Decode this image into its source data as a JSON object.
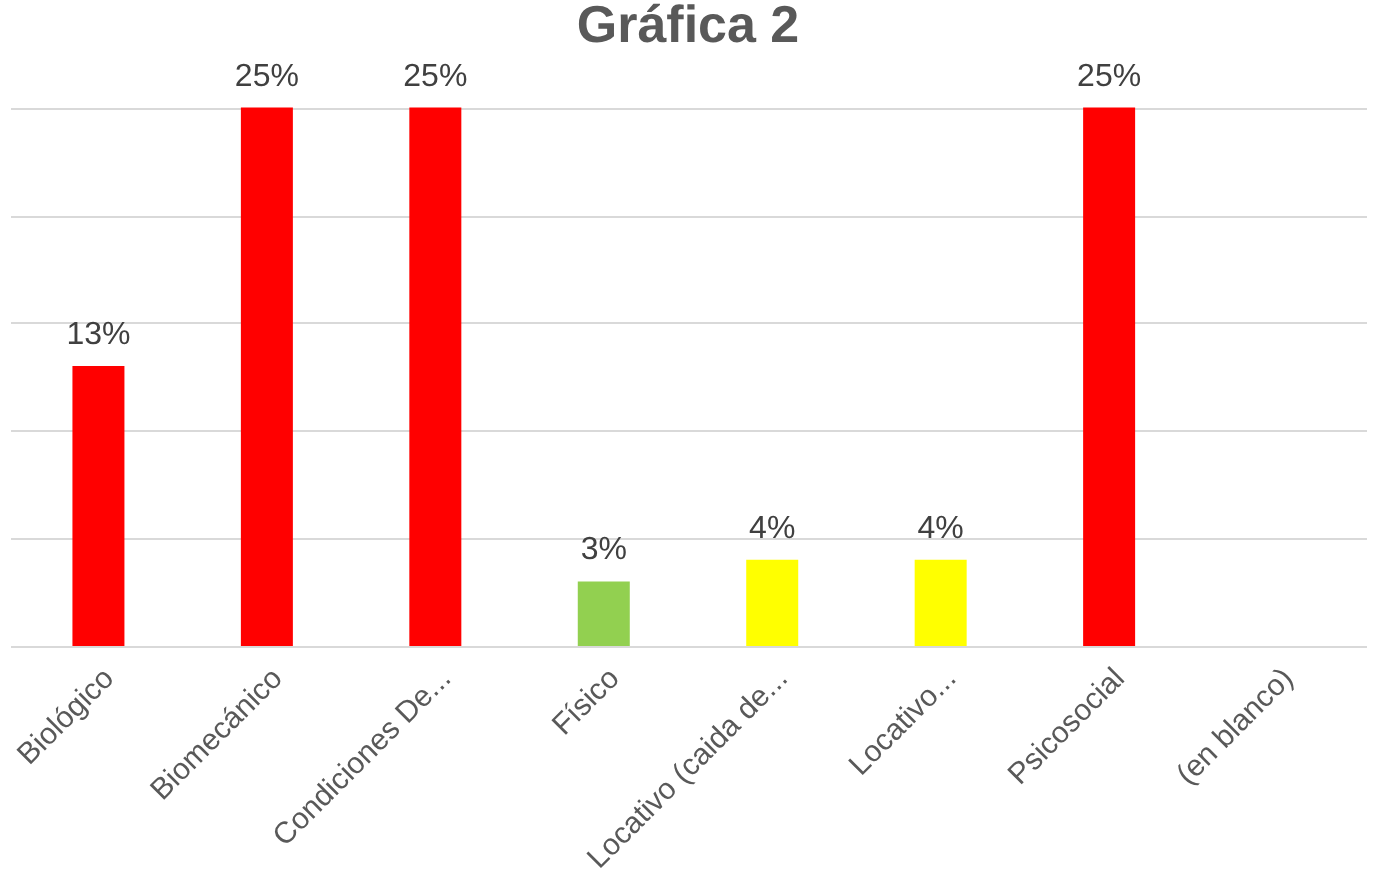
{
  "chart_data": {
    "type": "bar",
    "title": "Gráfica 2",
    "categories": [
      "Biológico",
      "Biomecánico",
      "Condiciones De...",
      "Físico",
      "Locativo (caida de...",
      "Locativo...",
      "Psicosocial",
      "(en blanco)"
    ],
    "values": [
      13,
      25,
      25,
      3,
      4,
      4,
      25,
      null
    ],
    "colors": [
      "#ff0000",
      "#ff0000",
      "#ff0000",
      "#92d050",
      "#ffff00",
      "#ffff00",
      "#ff0000",
      "#ff0000"
    ],
    "value_labels": [
      "13%",
      "25%",
      "25%",
      "3%",
      "4%",
      "4%",
      "25%",
      null
    ],
    "grid": "y",
    "tick_labels": "x"
  }
}
